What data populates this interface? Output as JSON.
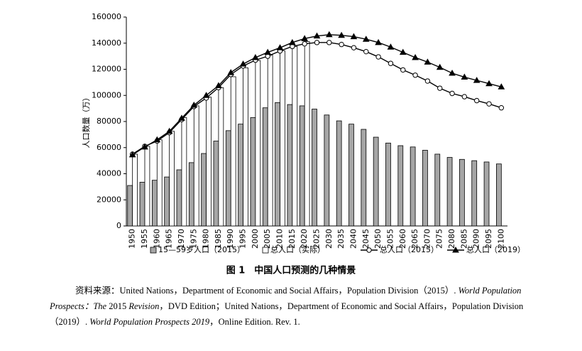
{
  "chart_data": {
    "type": "bar",
    "ylabel": "人口数量（万）",
    "caption": "图 1　中国人口预测的几种情景",
    "categories": [
      "1950",
      "1955",
      "1960",
      "1965",
      "1970",
      "1975",
      "1980",
      "1985",
      "1990",
      "1995",
      "2000",
      "2005",
      "2010",
      "2015",
      "2020",
      "2025",
      "2030",
      "2035",
      "2040",
      "2045",
      "2050",
      "2055",
      "2060",
      "2065",
      "2070",
      "2075",
      "2080",
      "2085",
      "2090",
      "2095",
      "2100"
    ],
    "ylim": [
      0,
      160000
    ],
    "yticks": [
      0,
      20000,
      40000,
      60000,
      80000,
      100000,
      120000,
      140000,
      160000
    ],
    "series": [
      {
        "name": "15—59岁人口（2015）",
        "type": "bar",
        "color": "#a6a6a6",
        "values": [
          31000,
          33500,
          35000,
          37500,
          43000,
          48500,
          55500,
          65000,
          73000,
          78000,
          83000,
          90500,
          94500,
          93000,
          92000,
          89500,
          85000,
          80500,
          78000,
          74000,
          68000,
          63500,
          61500,
          60500,
          58000,
          55000,
          52500,
          51000,
          50000,
          49000,
          47500
        ]
      },
      {
        "name": "总人口（实际）",
        "type": "bar",
        "color": "#ffffff",
        "values": [
          55000,
          61000,
          66000,
          72500,
          83000,
          92000,
          98700,
          105900,
          114300,
          121100,
          126700,
          130800,
          134100,
          137500,
          141200,
          null,
          null,
          null,
          null,
          null,
          null,
          null,
          null,
          null,
          null,
          null,
          null,
          null,
          null,
          null,
          null
        ]
      },
      {
        "name": "总人口（2015）",
        "type": "line",
        "marker": "circle",
        "color": "#000000",
        "values": [
          55000,
          61000,
          65000,
          71500,
          81500,
          91500,
          98000,
          106000,
          116000,
          122500,
          127000,
          130000,
          134000,
          137500,
          139500,
          140500,
          140500,
          139000,
          136500,
          133500,
          129500,
          124500,
          119500,
          115500,
          111000,
          105500,
          101500,
          99000,
          96000,
          93500,
          90500
        ]
      },
      {
        "name": "总人口（2019）",
        "type": "line",
        "marker": "triangle",
        "color": "#000000",
        "values": [
          54500,
          60500,
          66000,
          72500,
          82500,
          92500,
          100000,
          107500,
          117500,
          124000,
          129000,
          133000,
          136500,
          140500,
          143500,
          145500,
          146500,
          146000,
          145000,
          143000,
          140500,
          137000,
          133000,
          129000,
          125500,
          121500,
          117000,
          114000,
          111500,
          109000,
          106500
        ]
      }
    ]
  },
  "source": [
    "资料来源：United Nations，Department of Economic and Social Affairs，Population Division（2015）. ",
    "World Population Prospects：The",
    " 2015 ",
    "Revision",
    "，DVD Edition；United Nations，Department of Economic and Social Affairs，Population Division（2019）. ",
    "World Population Prospects 2019",
    "，Online Edition. Rev. 1."
  ]
}
